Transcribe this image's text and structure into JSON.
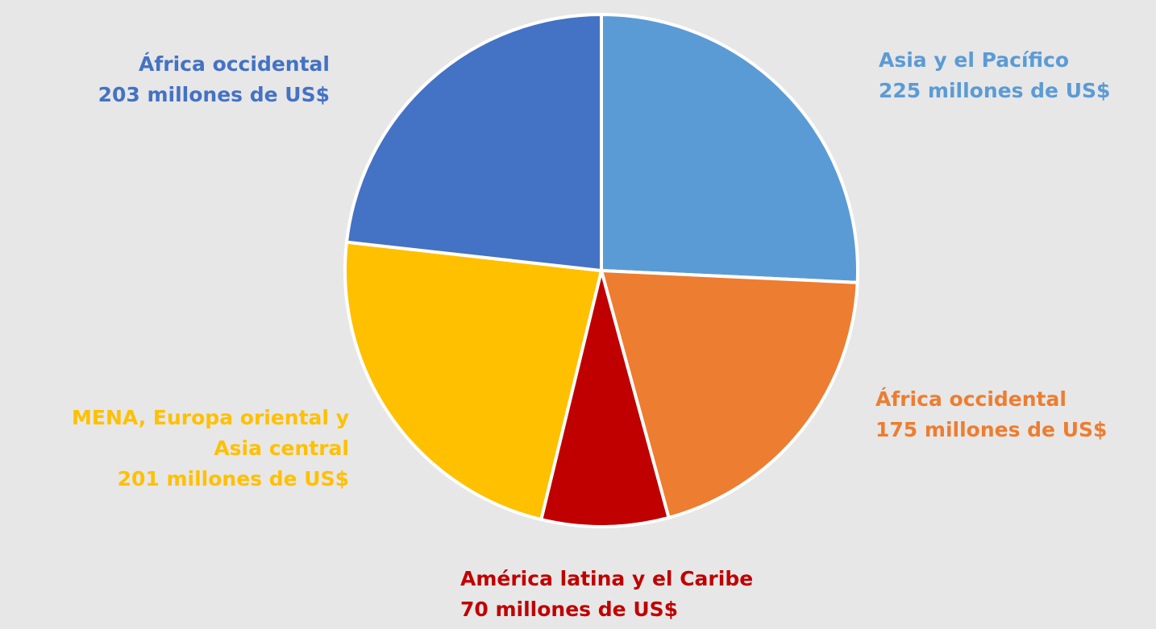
{
  "chart_data": {
    "type": "pie",
    "title": "",
    "unit": "millones de US$",
    "slices": [
      {
        "name": "Asia y el Pacífico",
        "value": 225,
        "value_label": "225 millones de US$",
        "color": "#5b9bd5"
      },
      {
        "name": "África occidental",
        "value": 175,
        "value_label": "175 millones de US$",
        "color": "#ed7d31"
      },
      {
        "name": "América latina y el Caribe",
        "value": 70,
        "value_label": "70 millones de US$",
        "color": "#c00000"
      },
      {
        "name": "MENA, Europa oriental y Asia central",
        "value": 201,
        "value_label": "201 millones de US$",
        "color": "#ffc000"
      },
      {
        "name": "África occidental",
        "value": 203,
        "value_label": "203 millones de US$",
        "color": "#4472c4"
      }
    ],
    "labels": {
      "asia": {
        "line1": "Asia y el Pacífico",
        "line2": "225 millones de US$"
      },
      "africa_occ_orange": {
        "line1": "África occidental",
        "line2": "175 millones de US$"
      },
      "latam": {
        "line1": "América latina y el Caribe",
        "line2": "70 millones de US$"
      },
      "mena": {
        "line1": "MENA, Europa oriental y",
        "line2": "Asia central",
        "line3": "201 millones de US$"
      },
      "africa_occ_blue": {
        "line1": "África occidental",
        "line2": "203 millones de US$"
      }
    },
    "legend": "none",
    "start_angle": "12 o'clock",
    "direction": "clockwise"
  }
}
